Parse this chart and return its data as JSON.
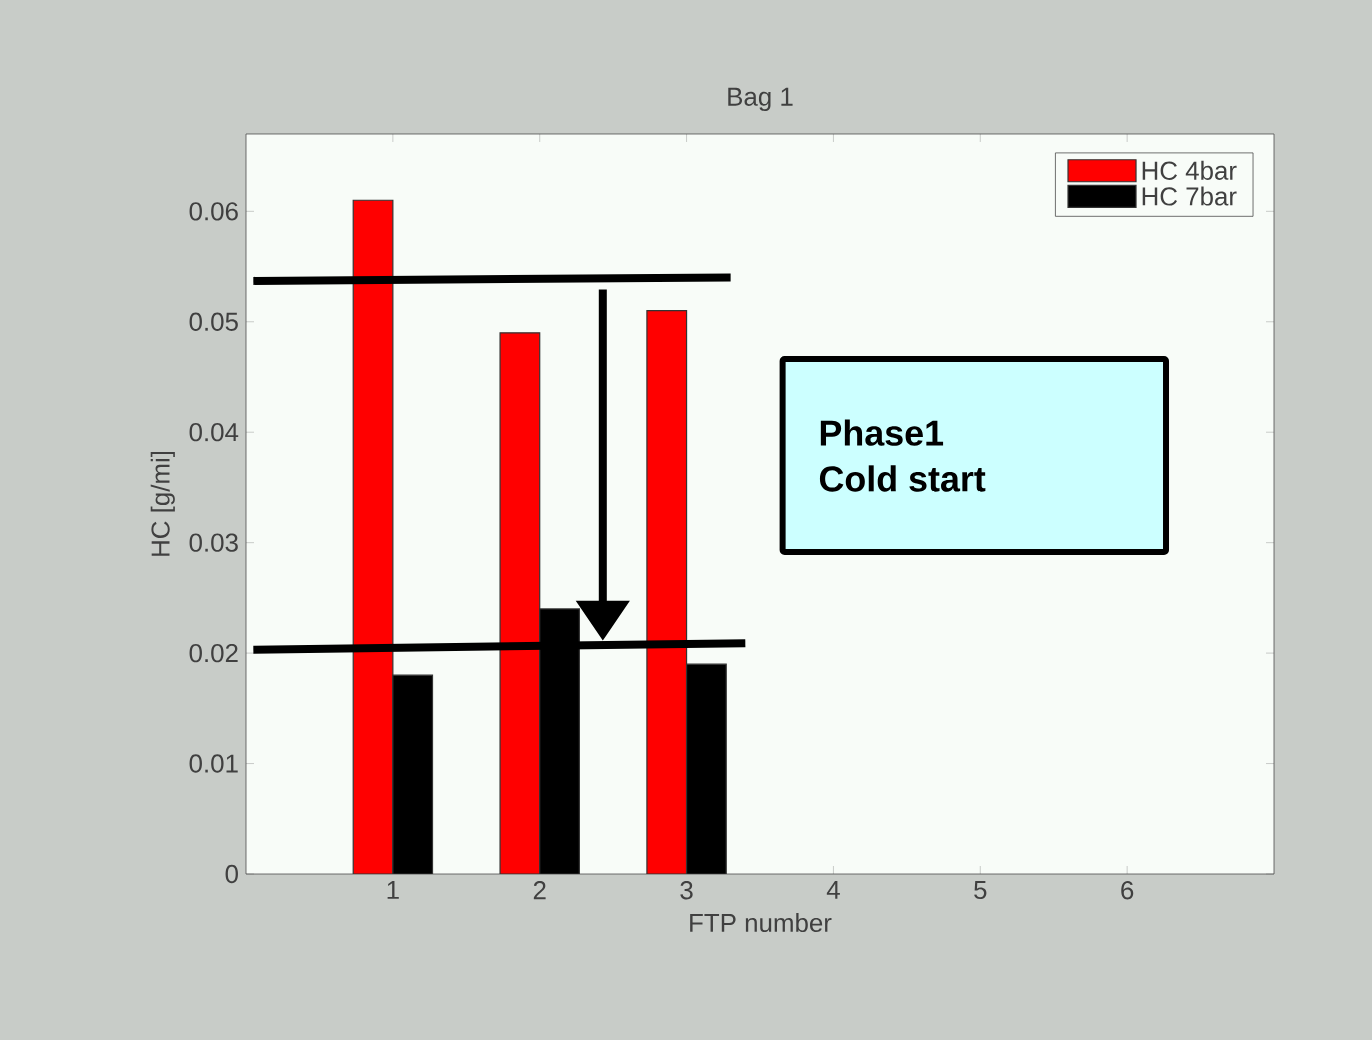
{
  "chart_data": {
    "type": "bar",
    "title": "Bag 1",
    "xlabel": "FTP number",
    "ylabel": "HC [g/mi]",
    "x": [
      1,
      2,
      3
    ],
    "series": [
      {
        "name": "HC 4bar",
        "color": "#ff0000",
        "values": [
          0.061,
          0.049,
          0.051
        ]
      },
      {
        "name": "HC 7bar",
        "color": "#000000",
        "values": [
          0.018,
          0.024,
          0.019
        ]
      },
      {
        "type": "line",
        "color": "#000000",
        "x": [
          0.05,
          3.3
        ],
        "values": [
          0.0537,
          0.054
        ]
      },
      {
        "type": "line",
        "color": "#000000",
        "x": [
          0.05,
          3.4
        ],
        "values": [
          0.0203,
          0.0209
        ]
      }
    ],
    "xlim": [
      0,
      7
    ],
    "xticks": [
      1,
      2,
      3,
      4,
      5,
      6
    ],
    "ylim": [
      0,
      0.067
    ],
    "yticks": [
      0,
      0.01,
      0.02,
      0.03,
      0.04,
      0.05,
      0.06
    ],
    "annotations": [
      "Phase1",
      "Cold start"
    ],
    "grid": false,
    "legend": "top right"
  }
}
